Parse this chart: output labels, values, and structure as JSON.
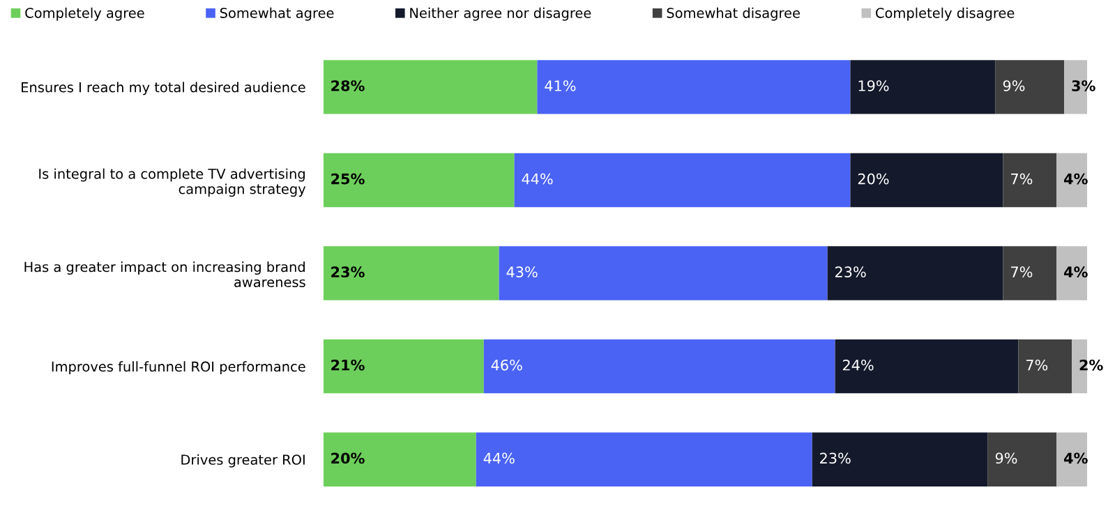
{
  "chart_data": {
    "type": "bar",
    "orientation": "horizontal",
    "stacked": true,
    "legend": "top",
    "grid": false,
    "tick_labels": "y",
    "categories": [
      "Ensures I reach my total desired audience",
      "Is integral to a complete TV advertising\ncampaign strategy",
      "Has a greater impact on increasing brand\nawareness",
      "Improves full-funnel ROI performance",
      "Drives greater ROI"
    ],
    "series": [
      {
        "name": "Completely agree",
        "color": "#6dcf5b",
        "values": [
          28,
          25,
          23,
          21,
          20
        ],
        "value_labels": [
          "28%",
          "25%",
          "23%",
          "21%",
          "20%"
        ]
      },
      {
        "name": "Somewhat agree",
        "color": "#4a63f5",
        "values": [
          41,
          44,
          43,
          46,
          44
        ],
        "value_labels": [
          "41%",
          "44%",
          "43%",
          "46%",
          "44%"
        ]
      },
      {
        "name": "Neither agree nor disagree",
        "color": "#141a2b",
        "values": [
          19,
          20,
          23,
          24,
          23
        ],
        "value_labels": [
          "19%",
          "20%",
          "23%",
          "24%",
          "23%"
        ]
      },
      {
        "name": "Somewhat disagree",
        "color": "#404040",
        "values": [
          9,
          7,
          7,
          7,
          9
        ],
        "value_labels": [
          "9%",
          "7%",
          "7%",
          "7%",
          "9%"
        ]
      },
      {
        "name": "Completely disagree",
        "color": "#c0c0c0",
        "values": [
          3,
          4,
          4,
          2,
          4
        ],
        "value_labels": [
          "3%",
          "4%",
          "4%",
          "2%",
          "4%"
        ]
      }
    ]
  }
}
